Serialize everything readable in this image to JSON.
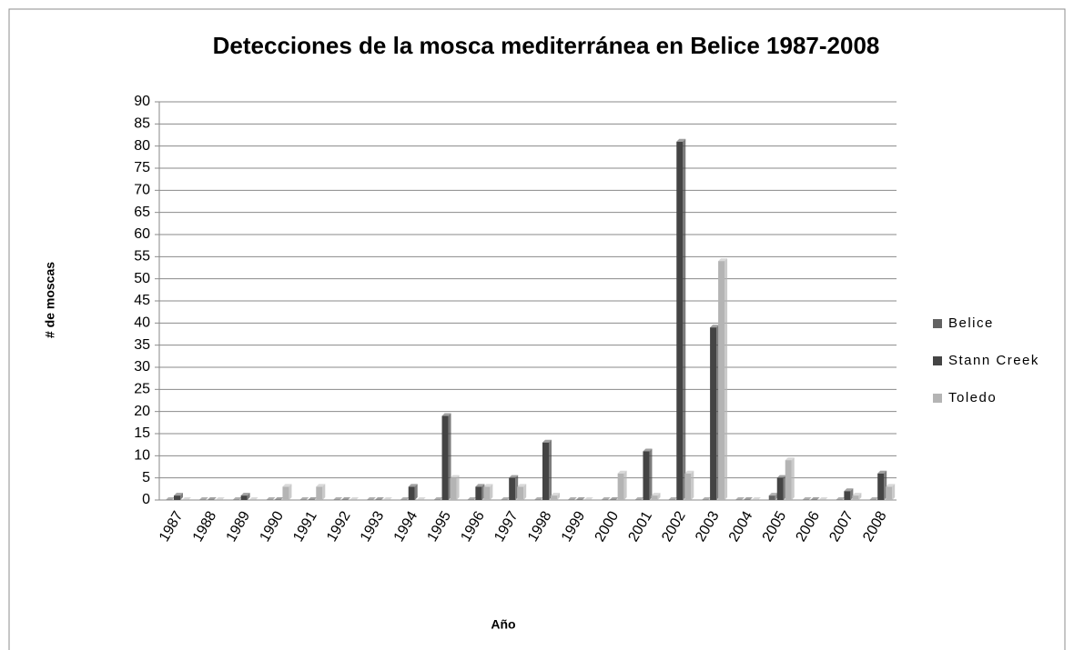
{
  "chart_data": {
    "type": "bar",
    "title": "Detecciones de la mosca mediterránea en Belice 1987-2008",
    "x_label": "Año",
    "y_label": "# de moscas",
    "categories": [
      "1987",
      "1988",
      "1989",
      "1990",
      "1991",
      "1992",
      "1993",
      "1994",
      "1995",
      "1996",
      "1997",
      "1998",
      "1999",
      "2000",
      "2001",
      "2002",
      "2003",
      "2004",
      "2005",
      "2006",
      "2007",
      "2008"
    ],
    "series": [
      {
        "name": "Belice",
        "color": "#626262",
        "values": [
          0,
          0,
          0,
          0,
          0,
          0,
          0,
          0,
          0,
          0,
          0,
          0,
          0,
          0,
          0,
          0,
          0,
          0,
          1,
          0,
          0,
          0
        ]
      },
      {
        "name": "Stann Creek",
        "color": "#444444",
        "values": [
          1,
          0,
          1,
          0,
          0,
          0,
          0,
          3,
          19,
          3,
          5,
          13,
          0,
          0,
          11,
          81,
          39,
          0,
          5,
          0,
          2,
          6
        ]
      },
      {
        "name": "Toledo",
        "color": "#b4b4b4",
        "values": [
          0,
          0,
          0,
          3,
          3,
          0,
          0,
          0,
          5,
          3,
          3,
          1,
          0,
          6,
          1,
          6,
          54,
          0,
          9,
          0,
          1,
          3
        ]
      }
    ],
    "ylim": [
      0,
      90
    ],
    "yticks": [
      0,
      5,
      10,
      15,
      20,
      25,
      30,
      35,
      40,
      45,
      50,
      55,
      60,
      65,
      70,
      75,
      80,
      85,
      90
    ],
    "grid": true,
    "legend": "right"
  }
}
